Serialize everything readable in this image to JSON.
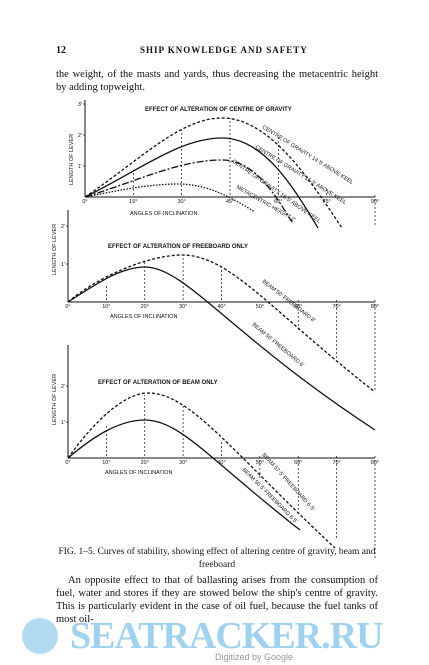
{
  "header": {
    "page_number": "12",
    "running_title": "SHIP KNOWLEDGE AND SAFETY"
  },
  "paragraph_1": "the weight, of the masts and yards, thus decreasing the metacentric height by adding topweight.",
  "figures": [
    {
      "title": "EFFECT OF ALTERATION OF CENTRE OF GRAVITY",
      "y_label": "LENGTH OF LEVER",
      "x_label": "ANGLES OF INCLINATION",
      "yticks": [
        "1'",
        "2'",
        "3'"
      ],
      "xticks": [
        "0°",
        "15°",
        "30°",
        "45°",
        "60°",
        "75°",
        "90°"
      ],
      "curve_labels": [
        "CENTRE OF GRAVITY 14·5' ABOVE KEEL",
        "CENTRE OF GRAVITY 15·5' ABOVE KEEL",
        "CENTRE OF GRAVITY 16·5' ABOVE KEEL",
        "METACENTRIC HEIGHT 2'"
      ]
    },
    {
      "title": "EFFECT OF ALTERATION OF FREEBOARD ONLY",
      "y_label": "LENGTH OF LEVER",
      "x_label": "ANGLES OF INCLINATION",
      "yticks": [
        "1'",
        "2'"
      ],
      "xticks": [
        "0°",
        "10°",
        "20°",
        "30°",
        "40°",
        "50°",
        "60°",
        "70°",
        "80°"
      ],
      "curve_labels": [
        "BEAM 50' FREEBOARD 8'",
        "BEAM 50' FREEBOARD 6'"
      ]
    },
    {
      "title": "EFFECT OF ALTERATION OF BEAM ONLY",
      "y_label": "LENGTH OF LEVER",
      "x_label": "ANGLES OF INCLINATION",
      "yticks": [
        "1'",
        "2'"
      ],
      "xticks": [
        "0°",
        "10°",
        "20°",
        "30°",
        "40°",
        "50°",
        "60°",
        "70°",
        "80°"
      ],
      "curve_labels": [
        "BEAM 57·5' FREEBOARD 6·5'",
        "BEAM 50·5' FREEBOARD 6·5'"
      ]
    }
  ],
  "caption": {
    "label": "FIG. 1–5.",
    "text": "Curves of stability, showing effect of altering centre of gravity, beam and freeboard"
  },
  "paragraph_2": "An opposite effect to that of ballasting arises from the consumption of fuel, water and stores if they are stowed below the ship's centre of gravity. This is particularly evident in the case of oil fuel, because the fuel tanks of most oil-",
  "watermark": {
    "site": "SEATRACKER.RU",
    "digitized": "Digitized by Google"
  }
}
